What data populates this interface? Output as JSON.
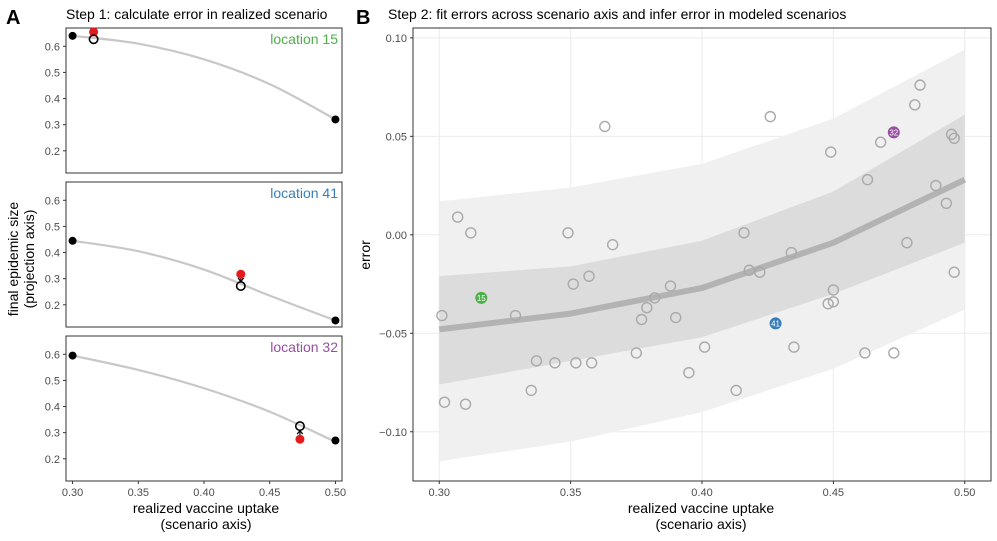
{
  "panel_labels": [
    "A",
    "B"
  ],
  "colors": {
    "green": "#4daf4a",
    "blue": "#377eb8",
    "purple": "#984ea3",
    "red": "#e41a1c",
    "curve": "#c8c8c8",
    "band_outer": "#f0f0f0",
    "band_inner": "#dcdcdc",
    "fit_line": "#b3b3b3",
    "open_point": "#a9a9a9"
  },
  "chart_data": [
    {
      "type": "line",
      "title": "Step 1: calculate error in realized scenario",
      "xlabel": [
        "realized vaccine uptake",
        "(scenario axis)"
      ],
      "ylabel": [
        "final epidemic size",
        "(projection axis)"
      ],
      "xlim": [
        0.295,
        0.505
      ],
      "ylim": [
        0.115,
        0.67
      ],
      "xticks": [
        "0.30",
        "0.35",
        "0.40",
        "0.45",
        "0.50"
      ],
      "yticks": [
        "0.2",
        "0.3",
        "0.4",
        "0.5",
        "0.6"
      ],
      "facets": [
        {
          "location": "location 15",
          "color": "#4daf4a",
          "curve": [
            [
              0.3,
              0.64
            ],
            [
              0.35,
              0.61
            ],
            [
              0.4,
              0.55
            ],
            [
              0.45,
              0.455
            ],
            [
              0.5,
              0.32
            ]
          ],
          "anchors": [
            [
              0.3,
              0.64
            ],
            [
              0.5,
              0.32
            ]
          ],
          "realized": [
            0.316,
            0.655
          ],
          "modeled": [
            0.316,
            0.627
          ]
        },
        {
          "location": "location 41",
          "color": "#377eb8",
          "curve": [
            [
              0.3,
              0.445
            ],
            [
              0.35,
              0.405
            ],
            [
              0.4,
              0.335
            ],
            [
              0.45,
              0.235
            ],
            [
              0.5,
              0.14
            ]
          ],
          "anchors": [
            [
              0.3,
              0.445
            ],
            [
              0.5,
              0.14
            ]
          ],
          "realized": [
            0.428,
            0.317
          ],
          "modeled": [
            0.428,
            0.272
          ]
        },
        {
          "location": "location 32",
          "color": "#984ea3",
          "curve": [
            [
              0.3,
              0.595
            ],
            [
              0.35,
              0.54
            ],
            [
              0.4,
              0.47
            ],
            [
              0.45,
              0.38
            ],
            [
              0.5,
              0.265
            ]
          ],
          "anchors": [
            [
              0.3,
              0.595
            ],
            [
              0.5,
              0.27
            ]
          ],
          "realized": [
            0.473,
            0.275
          ],
          "modeled": [
            0.473,
            0.325
          ]
        }
      ]
    },
    {
      "type": "scatter",
      "title": "Step 2: fit errors across scenario axis and infer error in modeled scenarios",
      "xlabel": [
        "realized vaccine uptake",
        "(scenario axis)"
      ],
      "ylabel": "error",
      "xlim": [
        0.29,
        0.51
      ],
      "ylim": [
        -0.125,
        0.105
      ],
      "xticks": [
        "0.30",
        "0.35",
        "0.40",
        "0.45",
        "0.50"
      ],
      "yticks": [
        "−0.10",
        "−0.05",
        "0.00",
        "0.05",
        "0.10"
      ],
      "ytick_values": [
        -0.1,
        -0.05,
        0,
        0.05,
        0.1
      ],
      "fit": {
        "x": [
          0.3,
          0.35,
          0.4,
          0.45,
          0.5
        ],
        "y": [
          -0.048,
          -0.04,
          -0.027,
          -0.004,
          0.028
        ],
        "inner_lo": [
          -0.076,
          -0.064,
          -0.052,
          -0.03,
          -0.004
        ],
        "inner_hi": [
          -0.021,
          -0.016,
          -0.003,
          0.022,
          0.061
        ],
        "outer_lo": [
          -0.115,
          -0.105,
          -0.09,
          -0.068,
          -0.038
        ],
        "outer_hi": [
          0.017,
          0.024,
          0.036,
          0.059,
          0.094
        ]
      },
      "points": [
        [
          0.301,
          -0.041
        ],
        [
          0.302,
          -0.085
        ],
        [
          0.307,
          0.009
        ],
        [
          0.31,
          -0.086
        ],
        [
          0.312,
          0.001
        ],
        [
          0.329,
          -0.041
        ],
        [
          0.335,
          -0.079
        ],
        [
          0.337,
          -0.064
        ],
        [
          0.344,
          -0.065
        ],
        [
          0.349,
          0.001
        ],
        [
          0.351,
          -0.025
        ],
        [
          0.352,
          -0.065
        ],
        [
          0.357,
          -0.021
        ],
        [
          0.358,
          -0.065
        ],
        [
          0.363,
          0.055
        ],
        [
          0.366,
          -0.005
        ],
        [
          0.375,
          -0.06
        ],
        [
          0.377,
          -0.043
        ],
        [
          0.379,
          -0.037
        ],
        [
          0.382,
          -0.032
        ],
        [
          0.388,
          -0.026
        ],
        [
          0.39,
          -0.042
        ],
        [
          0.395,
          -0.07
        ],
        [
          0.401,
          -0.057
        ],
        [
          0.413,
          -0.079
        ],
        [
          0.416,
          0.001
        ],
        [
          0.418,
          -0.018
        ],
        [
          0.422,
          -0.019
        ],
        [
          0.426,
          0.06
        ],
        [
          0.434,
          -0.009
        ],
        [
          0.435,
          -0.057
        ],
        [
          0.448,
          -0.035
        ],
        [
          0.449,
          0.042
        ],
        [
          0.45,
          -0.034
        ],
        [
          0.45,
          -0.028
        ],
        [
          0.462,
          -0.06
        ],
        [
          0.463,
          0.028
        ],
        [
          0.468,
          0.047
        ],
        [
          0.473,
          -0.06
        ],
        [
          0.478,
          -0.004
        ],
        [
          0.481,
          0.066
        ],
        [
          0.483,
          0.076
        ],
        [
          0.489,
          0.025
        ],
        [
          0.493,
          0.016
        ],
        [
          0.495,
          0.051
        ],
        [
          0.496,
          0.049
        ],
        [
          0.496,
          -0.019
        ]
      ],
      "highlighted": [
        {
          "label": "15",
          "x": 0.316,
          "y": -0.032,
          "color": "#4daf4a"
        },
        {
          "label": "41",
          "x": 0.428,
          "y": -0.045,
          "color": "#377eb8"
        },
        {
          "label": "32",
          "x": 0.473,
          "y": 0.052,
          "color": "#984ea3"
        }
      ]
    }
  ]
}
